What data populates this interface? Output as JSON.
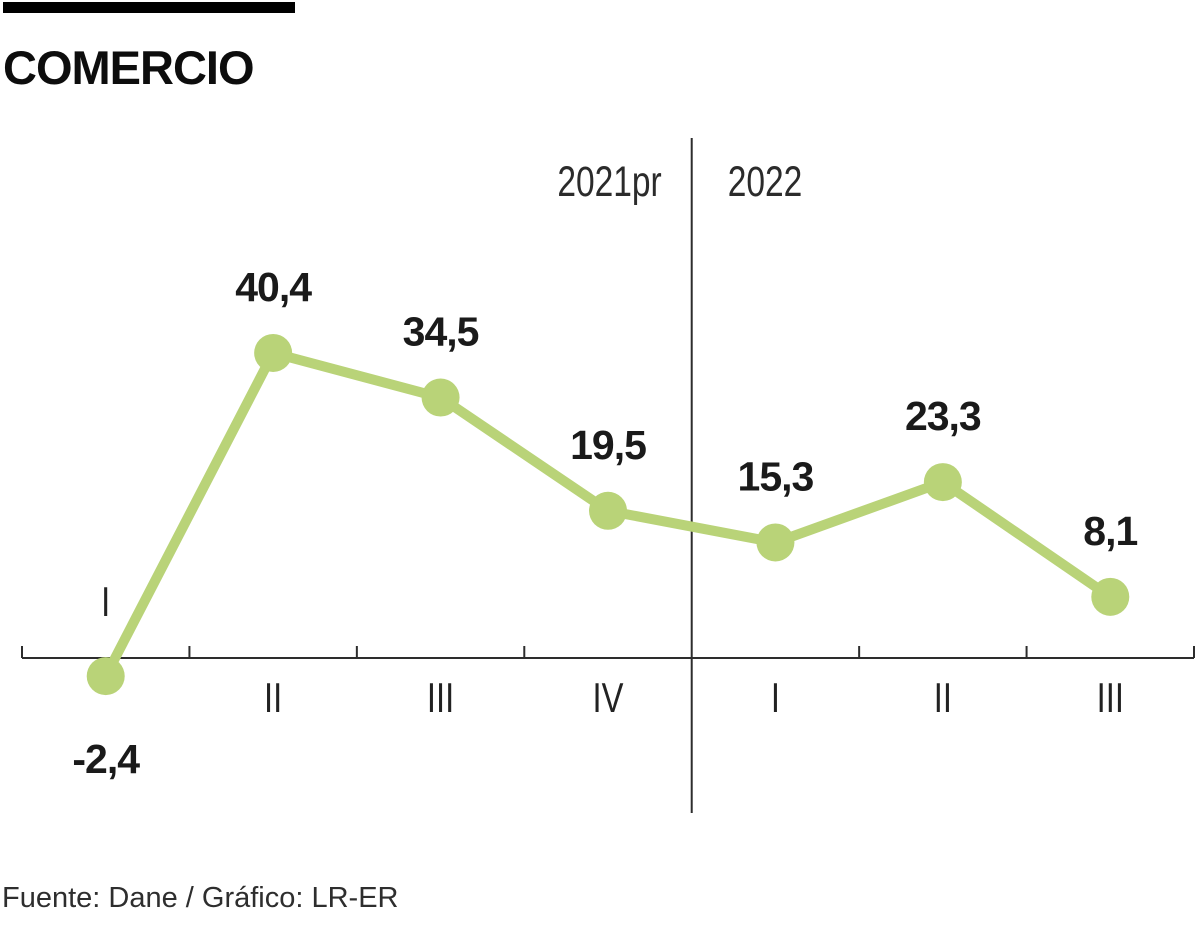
{
  "header": {
    "title": "COMERCIO",
    "bar_color": "#000000"
  },
  "chart_data": {
    "type": "line",
    "categories": [
      "I",
      "II",
      "III",
      "IV",
      "I",
      "II",
      "III"
    ],
    "values": [
      -2.4,
      40.4,
      34.5,
      19.5,
      15.3,
      23.3,
      8.1
    ],
    "value_labels": [
      "-2,4",
      "40,4",
      "34,5",
      "19,5",
      "15,3",
      "23,3",
      "8,1"
    ],
    "period_labels": [
      "2021pr",
      "2022"
    ],
    "divider_after_index": 3,
    "ylim": [
      -10,
      48
    ],
    "legend_position": "none",
    "grid": "off",
    "series_color": "#b9d378",
    "axis_color": "#2d2d2d",
    "value_label_color": "#1a1a1a",
    "category_label_color": "#222222",
    "period_label_color": "#2b2b2b"
  },
  "footer": {
    "source": "Fuente: Dane / Gráfico: LR-ER"
  }
}
